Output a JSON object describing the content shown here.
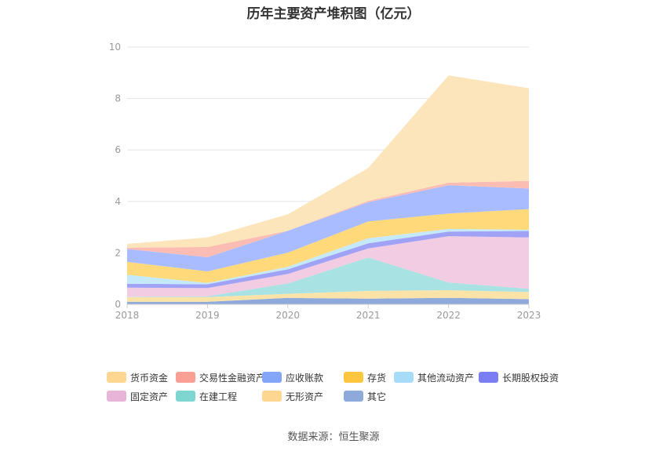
{
  "chart_data": {
    "type": "area",
    "stacked": true,
    "title": "历年主要资产堆积图（亿元）",
    "x": [
      "2018",
      "2019",
      "2020",
      "2021",
      "2022",
      "2023"
    ],
    "ylim": [
      0,
      10
    ],
    "yticks": [
      "0",
      "2",
      "4",
      "6",
      "8",
      "10"
    ],
    "xlabel": "",
    "ylabel": "",
    "grid": true,
    "series": [
      {
        "name": "其它",
        "color": "#8eaadb",
        "values": [
          0.1,
          0.1,
          0.25,
          0.22,
          0.25,
          0.2
        ]
      },
      {
        "name": "无形资产",
        "color": "#fbe3a8",
        "values": [
          0.18,
          0.18,
          0.16,
          0.3,
          0.3,
          0.28
        ]
      },
      {
        "name": "在建工程",
        "color": "#a8e2e2",
        "values": [
          0.02,
          0.03,
          0.4,
          1.3,
          0.3,
          0.12
        ]
      },
      {
        "name": "固定资产",
        "color": "#f2cce2",
        "values": [
          0.35,
          0.32,
          0.37,
          0.35,
          1.8,
          2.0
        ]
      },
      {
        "name": "长期股权投资",
        "color": "#a0a2f6",
        "values": [
          0.15,
          0.15,
          0.18,
          0.2,
          0.18,
          0.25
        ]
      },
      {
        "name": "其他流动资产",
        "color": "#c4e9fb",
        "values": [
          0.35,
          0.05,
          0.1,
          0.2,
          0.1,
          0.05
        ]
      },
      {
        "name": "存货",
        "color": "#ffd97a",
        "values": [
          0.5,
          0.45,
          0.55,
          0.65,
          0.6,
          0.8
        ]
      },
      {
        "name": "应收账款",
        "color": "#a9bcff",
        "values": [
          0.5,
          0.55,
          0.85,
          0.75,
          1.1,
          0.8
        ]
      },
      {
        "name": "交易性金融资产",
        "color": "#fbbcb3",
        "values": [
          0.05,
          0.4,
          0.0,
          0.05,
          0.1,
          0.3
        ]
      },
      {
        "name": "货币资金",
        "color": "#fde5bb",
        "values": [
          0.15,
          0.37,
          0.64,
          1.28,
          4.17,
          3.6
        ]
      }
    ],
    "legend_position": "bottom"
  },
  "legend": [
    {
      "name": "货币资金",
      "color": "#fdd692"
    },
    {
      "name": "交易性金融资产",
      "color": "#fa9f94"
    },
    {
      "name": "应收账款",
      "color": "#84a6f9"
    },
    {
      "name": "存货",
      "color": "#fdc63e"
    },
    {
      "name": "其他流动资产",
      "color": "#a7dcf9"
    },
    {
      "name": "长期股权投资",
      "color": "#7b7df2"
    },
    {
      "name": "固定资产",
      "color": "#e8b5d9"
    },
    {
      "name": "在建工程",
      "color": "#7fd6d1"
    },
    {
      "name": "无形资产",
      "color": "#fdd692"
    },
    {
      "name": "其它",
      "color": "#8eaadb"
    }
  ],
  "source": "数据来源：恒生聚源"
}
